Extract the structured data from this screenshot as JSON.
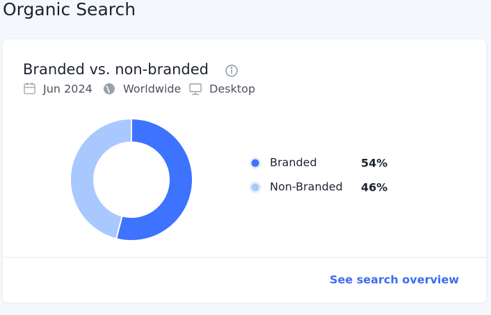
{
  "page_title": "Organic Search",
  "filters": {
    "date": "Jun 2024",
    "region": "Worldwide",
    "device": "Desktop"
  },
  "link": "See search overview",
  "chart_data": {
    "type": "donut",
    "title": "Branded vs. non-branded",
    "categories": [
      "Branded",
      "Non-Branded"
    ],
    "values": [
      54,
      46
    ],
    "value_labels": [
      "54%",
      "46%"
    ],
    "colors": [
      "#3d73ff",
      "#a9c8ff"
    ]
  }
}
